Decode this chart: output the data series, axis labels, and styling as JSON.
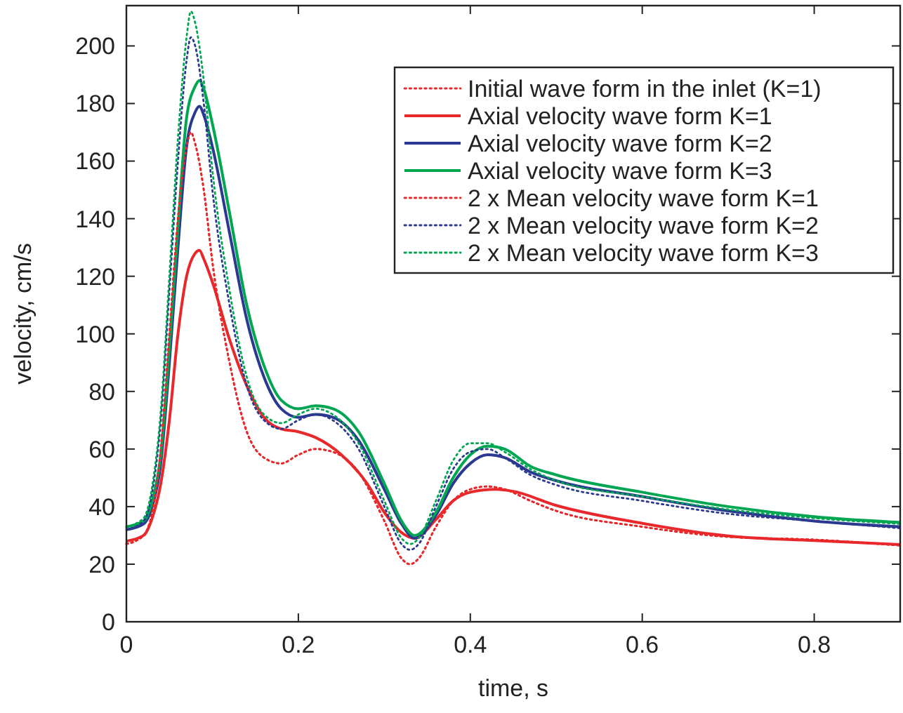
{
  "chart_data": {
    "type": "line",
    "xlabel": "time, s",
    "ylabel": "velocity, cm/s",
    "xlim": [
      0,
      0.9
    ],
    "ylim": [
      0,
      214
    ],
    "xticks": [
      0,
      0.2,
      0.4,
      0.6,
      0.8
    ],
    "yticks": [
      0,
      20,
      40,
      60,
      80,
      100,
      120,
      140,
      160,
      180,
      200
    ],
    "grid": false,
    "legend": "top right",
    "series": [
      {
        "name": "Initial wave form in the inlet (K=1)",
        "color": "#e8282a",
        "line_style": "dotted",
        "x": [
          0,
          0.02,
          0.03,
          0.04,
          0.05,
          0.06,
          0.07,
          0.075,
          0.08,
          0.09,
          0.1,
          0.12,
          0.14,
          0.16,
          0.18,
          0.2,
          0.22,
          0.24,
          0.27,
          0.3,
          0.32,
          0.33,
          0.34,
          0.36,
          0.38,
          0.4,
          0.42,
          0.44,
          0.47,
          0.5,
          0.6,
          0.7,
          0.8,
          0.9
        ],
        "values": [
          27,
          30,
          38,
          60,
          100,
          140,
          165,
          170,
          166,
          150,
          125,
          90,
          66,
          57,
          55,
          58,
          60,
          59,
          52,
          35,
          22,
          20,
          22,
          33,
          42,
          46,
          47,
          46,
          42,
          38.5,
          33,
          29.5,
          28.5,
          26.5
        ]
      },
      {
        "name": "Axial velocity wave form K=1",
        "color": "#e8282a",
        "line_style": "solid",
        "x": [
          0,
          0.02,
          0.03,
          0.04,
          0.05,
          0.06,
          0.07,
          0.08,
          0.085,
          0.09,
          0.1,
          0.12,
          0.14,
          0.16,
          0.18,
          0.2,
          0.22,
          0.25,
          0.28,
          0.3,
          0.32,
          0.335,
          0.36,
          0.38,
          0.4,
          0.43,
          0.45,
          0.5,
          0.6,
          0.7,
          0.8,
          0.9
        ],
        "values": [
          28,
          30,
          36,
          48,
          70,
          100,
          120,
          128,
          129,
          126,
          118,
          98,
          82,
          71,
          67,
          66,
          64,
          58,
          48,
          38,
          31,
          29,
          35.5,
          42,
          45,
          46,
          45.3,
          40.4,
          34.2,
          29.8,
          28.2,
          26.8
        ]
      },
      {
        "name": "Axial velocity wave form K=2",
        "color": "#2b3990",
        "line_style": "solid",
        "x": [
          0,
          0.02,
          0.03,
          0.04,
          0.05,
          0.06,
          0.07,
          0.08,
          0.085,
          0.09,
          0.1,
          0.12,
          0.14,
          0.16,
          0.18,
          0.2,
          0.22,
          0.24,
          0.27,
          0.3,
          0.32,
          0.335,
          0.36,
          0.38,
          0.4,
          0.42,
          0.44,
          0.47,
          0.5,
          0.6,
          0.7,
          0.8,
          0.9
        ],
        "values": [
          32,
          34,
          40,
          55,
          90,
          130,
          165,
          177,
          179,
          176,
          165,
          135,
          105,
          85,
          74,
          71,
          72,
          71,
          63,
          46,
          34,
          29,
          37,
          48,
          55,
          58,
          57,
          52,
          49,
          43.5,
          38.5,
          35,
          33
        ]
      },
      {
        "name": "Axial velocity wave form K=3",
        "color": "#00a651",
        "line_style": "solid",
        "x": [
          0,
          0.02,
          0.03,
          0.04,
          0.05,
          0.06,
          0.07,
          0.08,
          0.085,
          0.09,
          0.1,
          0.12,
          0.14,
          0.16,
          0.18,
          0.2,
          0.22,
          0.24,
          0.27,
          0.3,
          0.32,
          0.335,
          0.36,
          0.38,
          0.4,
          0.42,
          0.44,
          0.47,
          0.5,
          0.6,
          0.7,
          0.8,
          0.9
        ],
        "values": [
          33,
          35,
          42,
          58,
          95,
          137,
          175,
          186,
          188,
          185,
          173,
          142,
          110,
          89,
          77,
          74,
          75,
          74,
          66,
          48,
          35,
          30,
          38,
          50,
          58,
          61,
          60,
          54,
          51,
          45,
          40,
          36.5,
          34.5
        ]
      },
      {
        "name": "2 x Mean velocity wave form K=1",
        "color": "#e8282a",
        "line_style": "dotted",
        "x": [
          0,
          0.02,
          0.03,
          0.04,
          0.05,
          0.06,
          0.07,
          0.075,
          0.08,
          0.09,
          0.1,
          0.12,
          0.14,
          0.16,
          0.18,
          0.2,
          0.22,
          0.24,
          0.27,
          0.3,
          0.32,
          0.33,
          0.34,
          0.36,
          0.38,
          0.4,
          0.42,
          0.44,
          0.47,
          0.5,
          0.6,
          0.7,
          0.8,
          0.9
        ],
        "values": [
          27,
          30,
          38,
          60,
          100,
          140,
          165,
          170,
          166,
          150,
          125,
          90,
          66,
          57,
          55,
          58,
          60,
          59,
          52,
          35,
          22,
          20,
          22,
          33,
          42,
          46,
          47,
          46,
          42,
          38.5,
          33,
          29.5,
          28.5,
          26.5
        ]
      },
      {
        "name": "2 x Mean velocity wave form K=2",
        "color": "#2b3990",
        "line_style": "dotted",
        "x": [
          0,
          0.02,
          0.03,
          0.04,
          0.05,
          0.06,
          0.07,
          0.075,
          0.08,
          0.09,
          0.1,
          0.12,
          0.14,
          0.16,
          0.18,
          0.2,
          0.22,
          0.24,
          0.27,
          0.3,
          0.32,
          0.33,
          0.34,
          0.36,
          0.38,
          0.4,
          0.42,
          0.44,
          0.47,
          0.5,
          0.6,
          0.7,
          0.8,
          0.9
        ],
        "values": [
          32,
          35,
          45,
          70,
          115,
          160,
          195,
          203,
          200,
          180,
          150,
          110,
          82,
          70,
          67,
          70,
          72,
          70,
          60,
          40,
          27,
          25,
          27,
          40,
          53,
          59,
          60,
          57,
          51,
          47.5,
          42,
          37.5,
          35,
          32.5
        ]
      },
      {
        "name": "2 x Mean velocity wave form K=3",
        "color": "#00a651",
        "line_style": "dotted",
        "x": [
          0,
          0.02,
          0.03,
          0.04,
          0.05,
          0.06,
          0.07,
          0.075,
          0.08,
          0.09,
          0.1,
          0.12,
          0.14,
          0.16,
          0.18,
          0.2,
          0.22,
          0.24,
          0.27,
          0.3,
          0.32,
          0.33,
          0.34,
          0.36,
          0.38,
          0.4,
          0.42,
          0.44,
          0.47,
          0.5,
          0.6,
          0.7,
          0.8,
          0.9
        ],
        "values": [
          33,
          36,
          47,
          73,
          120,
          168,
          203,
          212,
          208,
          188,
          157,
          115,
          85,
          72,
          69,
          72,
          74,
          72,
          62,
          42,
          29,
          27,
          29,
          42,
          56,
          62,
          62,
          59,
          53,
          49,
          43.5,
          39,
          36,
          34
        ]
      }
    ]
  }
}
